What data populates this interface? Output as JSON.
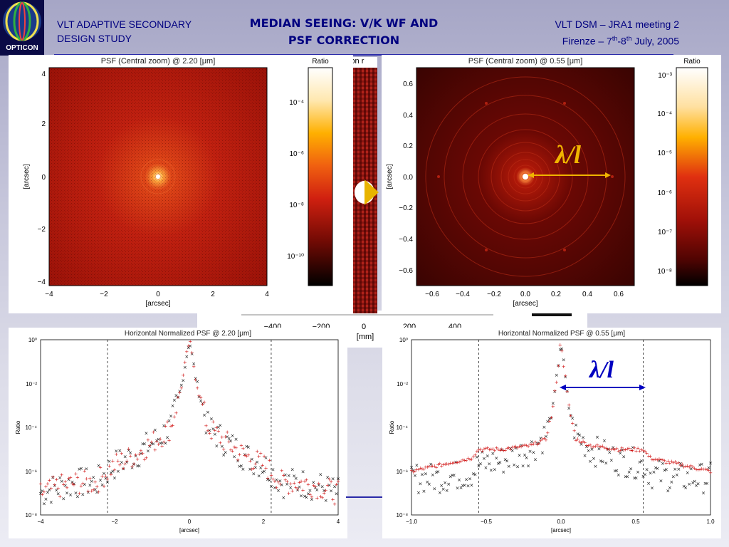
{
  "header": {
    "left_title_line1": "VLT ADAPTIVE SECONDARY",
    "left_title_line2": "DESIGN STUDY",
    "center_title_line1": "MEDIAN SEEING: V/K WF AND",
    "center_title_line2": "PSF CORRECTION",
    "right_title_line1": "VLT DSM – JRA1 meeting 2",
    "right_pre": "Firenze – 7",
    "right_sup1": "th",
    "right_mid": "-8",
    "right_sup2": "th",
    "right_post": " July, 2005",
    "logo_text": "OPTICON"
  },
  "background_fragments": {
    "axis_label": "[mm]",
    "ticks": [
      "−400",
      "−200",
      "0",
      "200",
      "400"
    ],
    "partial_text": "ion r"
  },
  "psf_left": {
    "title": "PSF (Central zoom) @ 2.20 [μm]",
    "xlabel": "[arcsec]",
    "ylabel": "[arcsec]",
    "xticks": [
      "−4",
      "−2",
      "0",
      "2",
      "4"
    ],
    "yticks": [
      "4",
      "2",
      "0",
      "−2",
      "−4"
    ],
    "colorbar_label": "Ratio",
    "colorbar_ticks": [
      "10⁻⁴",
      "10⁻⁶",
      "10⁻⁸",
      "10⁻¹⁰"
    ]
  },
  "psf_right": {
    "title": "PSF (Central zoom) @ 0.55 [μm]",
    "xlabel": "[arcsec]",
    "ylabel": "[arcsec]",
    "xticks": [
      "−0.6",
      "−0.4",
      "−0.2",
      "0.0",
      "0.2",
      "0.4",
      "0.6"
    ],
    "yticks": [
      "0.6",
      "0.4",
      "0.2",
      "0.0",
      "−0.2",
      "−0.4",
      "−0.6"
    ],
    "colorbar_label": "Ratio",
    "colorbar_ticks": [
      "10⁻³",
      "10⁻⁴",
      "10⁻⁵",
      "10⁻⁶",
      "10⁻⁷",
      "10⁻⁸"
    ],
    "annotation": "λ/l"
  },
  "profile_left": {
    "title": "Horizontal Normalized PSF @ 2.20 [μm]",
    "xlabel": "[arcsec]",
    "ylabel": "Ratio",
    "xticks": [
      "−4",
      "−2",
      "0",
      "2",
      "4"
    ],
    "yticks": [
      "10⁰",
      "10⁻²",
      "10⁻⁴",
      "10⁻⁶",
      "10⁻⁸"
    ],
    "dashed_x": [
      -2.2,
      2.2
    ]
  },
  "profile_right": {
    "title": "Horizontal Normalized PSF @ 0.55 [μm]",
    "xlabel": "[arcsec]",
    "ylabel": "Ratio",
    "xticks": [
      "−1.0",
      "−0.5",
      "0.0",
      "0.5",
      "1.0"
    ],
    "yticks": [
      "10⁰",
      "10⁻²",
      "10⁻⁴",
      "10⁻⁶",
      "10⁻⁸"
    ],
    "dashed_x": [
      -0.55,
      0.55
    ],
    "annotation": "λ/l"
  },
  "colors": {
    "title_blue": "#000080",
    "rule_blue": "#2a2aa8",
    "annotation_gold": "#f0b400",
    "annotation_blue": "#0000c0",
    "red_series": "#d01010",
    "black_series": "#000000"
  },
  "chart_data": [
    {
      "type": "heatmap",
      "title": "PSF (Central zoom) @ 2.20 [μm]",
      "xlabel": "[arcsec]",
      "ylabel": "[arcsec]",
      "xlim": [
        -4,
        4
      ],
      "ylim": [
        -4,
        4
      ],
      "colorbar": "Ratio",
      "colorbar_range": [
        1e-10,
        0.001
      ]
    },
    {
      "type": "heatmap",
      "title": "PSF (Central zoom) @ 0.55 [μm]",
      "xlabel": "[arcsec]",
      "ylabel": "[arcsec]",
      "xlim": [
        -0.7,
        0.7
      ],
      "ylim": [
        -0.7,
        0.7
      ],
      "colorbar": "Ratio",
      "colorbar_range": [
        1e-08,
        0.001
      ]
    },
    {
      "type": "scatter",
      "title": "Horizontal Normalized PSF @ 2.20 [μm]",
      "xlabel": "[arcsec]",
      "ylabel": "Ratio",
      "xlim": [
        -4,
        4
      ],
      "ylim": [
        1e-08,
        1
      ],
      "yscale": "log",
      "series": [
        {
          "color": "black",
          "marker": "x",
          "x": [
            -4,
            -3.5,
            -3,
            -2.5,
            -2.2,
            -2,
            -1.5,
            -1,
            -0.5,
            -0.2,
            0,
            0.2,
            0.5,
            1,
            1.5,
            2,
            2.2,
            2.5,
            3,
            3.5,
            4
          ],
          "y": [
            1e-07,
            2e-07,
            3e-07,
            3e-07,
            1e-06,
            2e-06,
            5e-06,
            2e-05,
            0.0001,
            0.01,
            1,
            0.01,
            0.0001,
            2e-05,
            5e-06,
            2e-06,
            1e-06,
            3e-07,
            3e-07,
            2e-07,
            1e-07
          ]
        },
        {
          "color": "red",
          "marker": "+",
          "x": [
            -4,
            -3.5,
            -3,
            -2.5,
            -2.2,
            -2,
            -1.5,
            -1,
            -0.5,
            -0.2,
            0,
            0.2,
            0.5,
            1,
            1.5,
            2,
            2.2,
            2.5,
            3,
            3.5,
            4
          ],
          "y": [
            1e-07,
            2e-07,
            3e-07,
            3e-07,
            1e-06,
            2e-06,
            5e-06,
            2e-05,
            0.0001,
            0.01,
            1,
            0.01,
            0.0001,
            2e-05,
            5e-06,
            2e-06,
            1e-06,
            3e-07,
            3e-07,
            2e-07,
            1e-07
          ]
        }
      ]
    },
    {
      "type": "scatter",
      "title": "Horizontal Normalized PSF @ 0.55 [μm]",
      "xlabel": "[arcsec]",
      "ylabel": "Ratio",
      "xlim": [
        -1,
        1
      ],
      "ylim": [
        1e-08,
        1
      ],
      "yscale": "log",
      "series": [
        {
          "color": "black",
          "marker": "x",
          "x": [
            -1,
            -0.8,
            -0.6,
            -0.55,
            -0.4,
            -0.2,
            -0.1,
            -0.05,
            0,
            0.05,
            0.1,
            0.2,
            0.4,
            0.55,
            0.6,
            0.8,
            1
          ],
          "y": [
            5e-07,
            5e-07,
            8e-07,
            2e-06,
            3e-06,
            1e-05,
            5e-05,
            0.001,
            1,
            0.001,
            5e-05,
            1e-05,
            3e-06,
            2e-06,
            8e-07,
            5e-07,
            5e-07
          ]
        },
        {
          "color": "red",
          "marker": "+",
          "x": [
            -1,
            -0.8,
            -0.6,
            -0.55,
            -0.4,
            -0.2,
            -0.1,
            -0.05,
            0,
            0.05,
            0.1,
            0.2,
            0.4,
            0.55,
            0.6,
            0.8,
            1
          ],
          "y": [
            1e-06,
            2e-06,
            4e-06,
            1e-05,
            1e-05,
            1.5e-05,
            3e-05,
            0.001,
            1,
            0.001,
            3e-05,
            1.5e-05,
            1e-05,
            1e-05,
            4e-06,
            2e-06,
            1e-06
          ]
        }
      ]
    }
  ]
}
